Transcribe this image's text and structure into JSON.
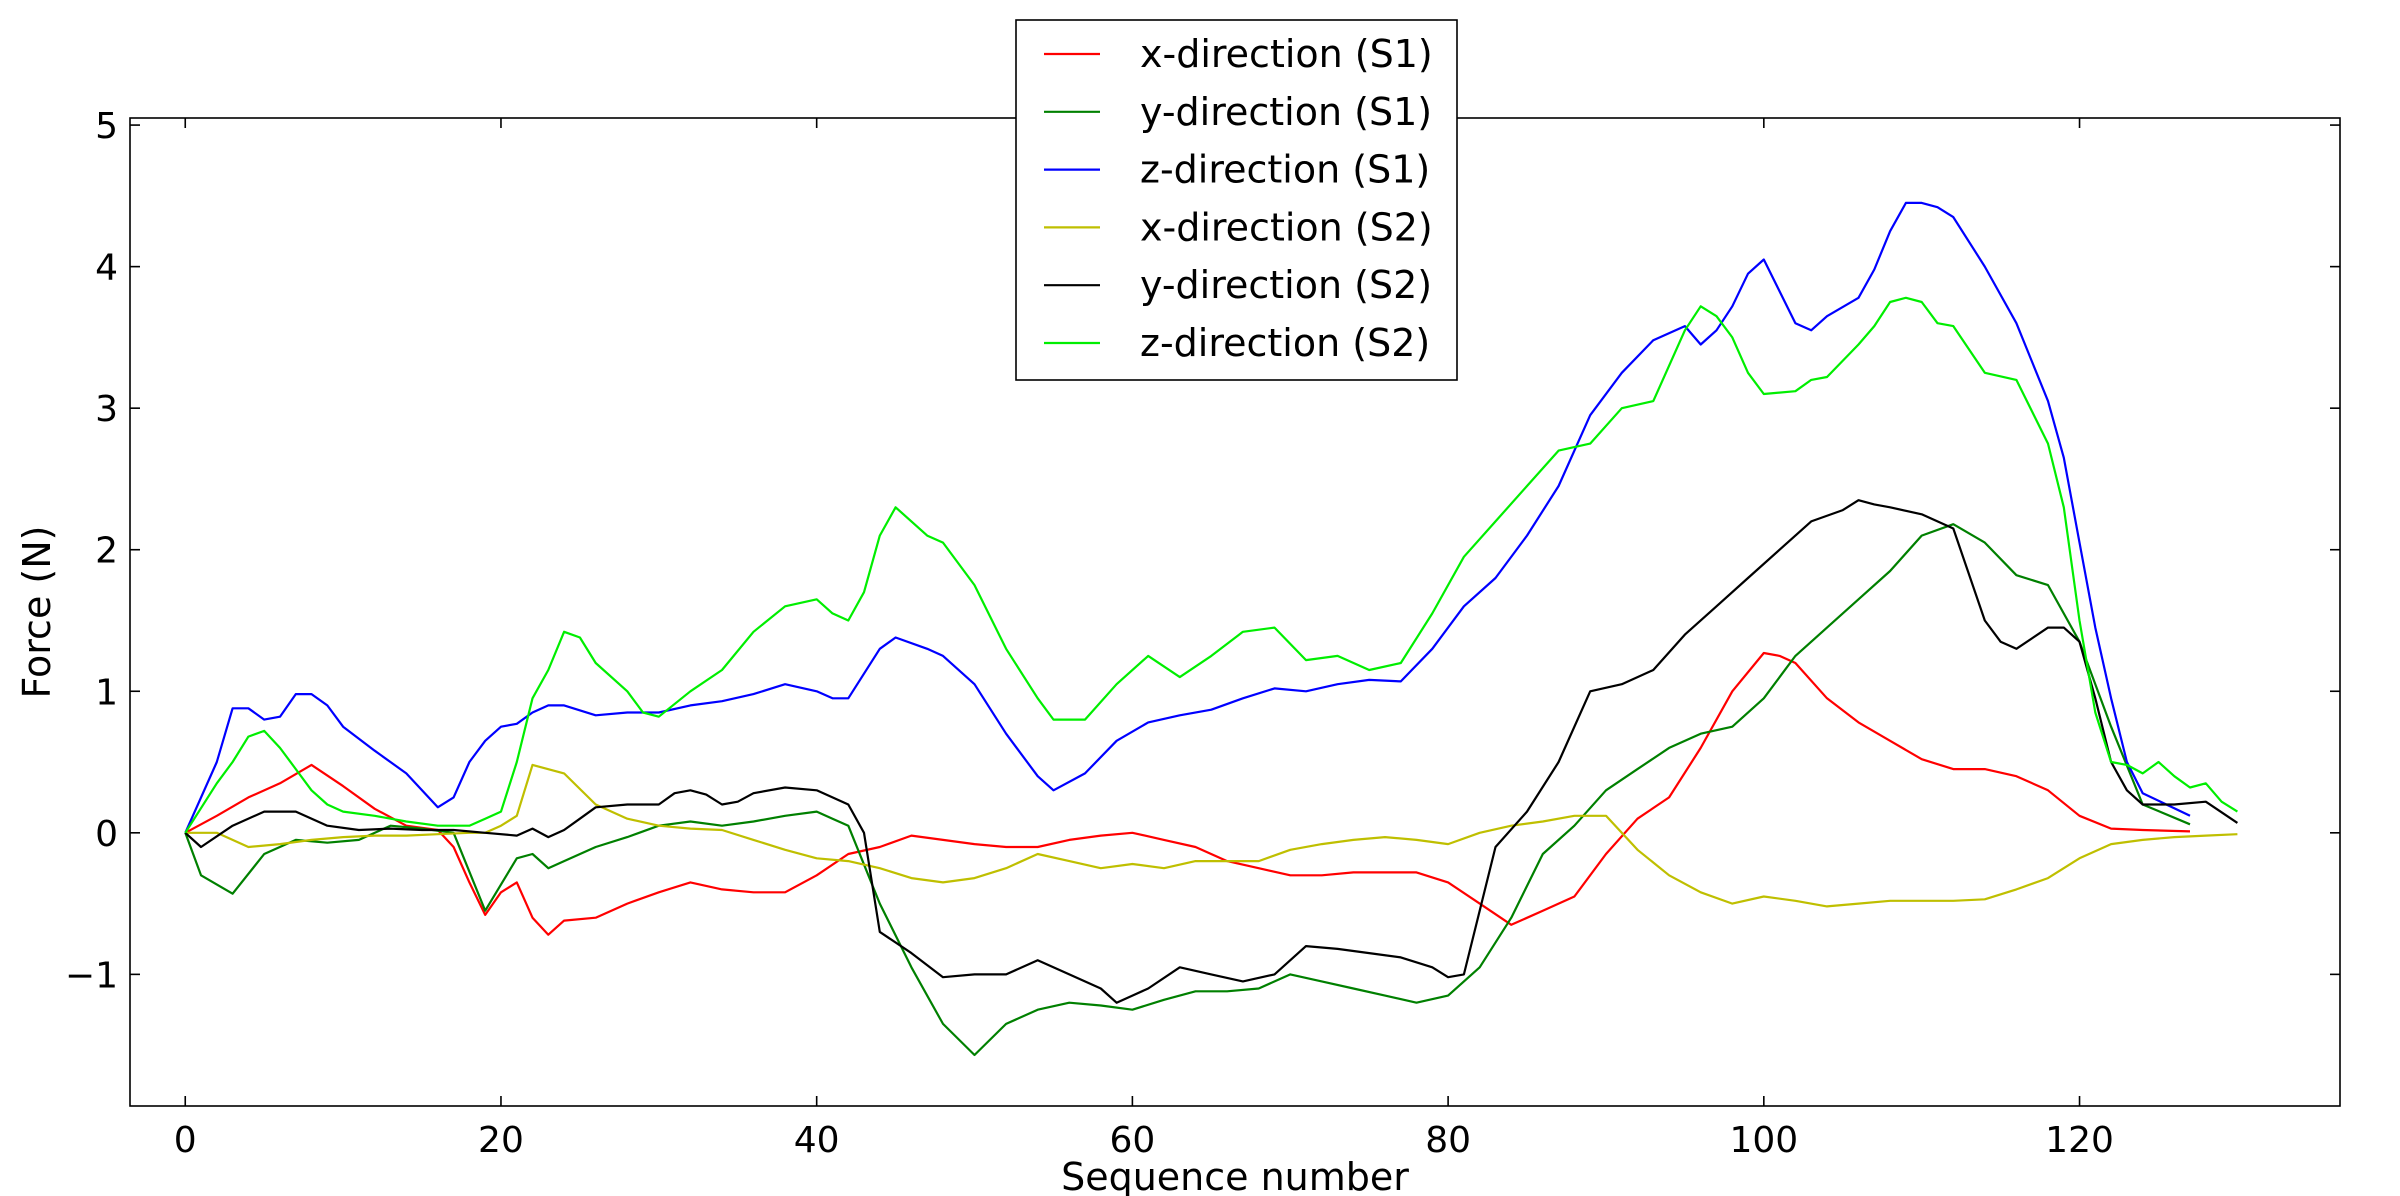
{
  "chart_data": {
    "type": "line",
    "title": "",
    "xlabel": "Sequence number",
    "ylabel": "Force (N)",
    "xlim": [
      -3.5,
      136.5
    ],
    "ylim": [
      -1.93,
      5.05
    ],
    "xticks": [
      0,
      20,
      40,
      60,
      80,
      100,
      120
    ],
    "yticks": [
      -1,
      0,
      1,
      2,
      3,
      4,
      5
    ],
    "ytick_labels": [
      "−1",
      "0",
      "1",
      "2",
      "3",
      "4",
      "5"
    ],
    "grid": false,
    "legend_position": "top-center",
    "series": [
      {
        "name": "x-direction (S1)",
        "color": "#ff0000",
        "x": [
          0,
          2,
          4,
          6,
          8,
          10,
          12,
          14,
          16,
          17,
          18,
          19,
          20,
          21,
          22,
          23,
          24,
          26,
          28,
          30,
          32,
          34,
          36,
          38,
          40,
          42,
          44,
          46,
          48,
          50,
          52,
          54,
          56,
          58,
          60,
          62,
          64,
          66,
          68,
          70,
          72,
          74,
          76,
          78,
          80,
          82,
          84,
          86,
          88,
          90,
          92,
          94,
          96,
          98,
          100,
          101,
          102,
          104,
          106,
          108,
          110,
          112,
          114,
          116,
          118,
          120,
          122,
          124,
          127
        ],
        "y": [
          0,
          0.12,
          0.25,
          0.35,
          0.48,
          0.33,
          0.17,
          0.05,
          0.02,
          -0.1,
          -0.35,
          -0.58,
          -0.42,
          -0.35,
          -0.6,
          -0.72,
          -0.62,
          -0.6,
          -0.5,
          -0.42,
          -0.35,
          -0.4,
          -0.42,
          -0.42,
          -0.3,
          -0.15,
          -0.1,
          -0.02,
          -0.05,
          -0.08,
          -0.1,
          -0.1,
          -0.05,
          -0.02,
          0,
          -0.05,
          -0.1,
          -0.2,
          -0.25,
          -0.3,
          -0.3,
          -0.28,
          -0.28,
          -0.28,
          -0.35,
          -0.5,
          -0.65,
          -0.55,
          -0.45,
          -0.15,
          0.1,
          0.25,
          0.6,
          1.0,
          1.27,
          1.25,
          1.2,
          0.95,
          0.78,
          0.65,
          0.52,
          0.45,
          0.45,
          0.4,
          0.3,
          0.12,
          0.03,
          0.02,
          0.01
        ]
      },
      {
        "name": "y-direction (S1)",
        "color": "#008000",
        "x": [
          0,
          1,
          3,
          5,
          7,
          9,
          11,
          13,
          15,
          17,
          19,
          21,
          22,
          23,
          24,
          26,
          28,
          30,
          32,
          34,
          36,
          38,
          40,
          41,
          42,
          44,
          46,
          48,
          50,
          52,
          54,
          56,
          58,
          60,
          62,
          64,
          66,
          68,
          70,
          72,
          74,
          76,
          78,
          80,
          82,
          84,
          86,
          88,
          90,
          92,
          94,
          96,
          98,
          100,
          102,
          104,
          106,
          108,
          110,
          112,
          114,
          116,
          118,
          120,
          122,
          124,
          127
        ],
        "y": [
          0,
          -0.3,
          -0.43,
          -0.15,
          -0.05,
          -0.07,
          -0.05,
          0.05,
          0.03,
          0,
          -0.55,
          -0.18,
          -0.15,
          -0.25,
          -0.2,
          -0.1,
          -0.03,
          0.05,
          0.08,
          0.05,
          0.08,
          0.12,
          0.15,
          0.1,
          0.05,
          -0.5,
          -0.95,
          -1.35,
          -1.57,
          -1.35,
          -1.25,
          -1.2,
          -1.22,
          -1.25,
          -1.18,
          -1.12,
          -1.12,
          -1.1,
          -1.0,
          -1.05,
          -1.1,
          -1.15,
          -1.2,
          -1.15,
          -0.95,
          -0.6,
          -0.15,
          0.05,
          0.3,
          0.45,
          0.6,
          0.7,
          0.75,
          0.95,
          1.25,
          1.45,
          1.65,
          1.85,
          2.1,
          2.18,
          2.05,
          1.82,
          1.75,
          1.35,
          0.75,
          0.2,
          0.06
        ]
      },
      {
        "name": "z-direction (S1)",
        "color": "#0000ff",
        "x": [
          0,
          2,
          3,
          4,
          5,
          6,
          7,
          8,
          9,
          10,
          12,
          14,
          16,
          17,
          18,
          19,
          20,
          21,
          22,
          23,
          24,
          26,
          28,
          30,
          32,
          34,
          36,
          38,
          40,
          41,
          42,
          44,
          45,
          47,
          48,
          50,
          52,
          54,
          55,
          57,
          59,
          61,
          63,
          65,
          67,
          69,
          71,
          73,
          75,
          77,
          79,
          81,
          83,
          85,
          87,
          89,
          91,
          93,
          95,
          96,
          97,
          98,
          99,
          100,
          102,
          103,
          104,
          106,
          107,
          108,
          109,
          110,
          111,
          112,
          114,
          116,
          118,
          119,
          120,
          121,
          122,
          123,
          124,
          127
        ],
        "y": [
          0,
          0.5,
          0.88,
          0.88,
          0.8,
          0.82,
          0.98,
          0.98,
          0.9,
          0.75,
          0.58,
          0.42,
          0.18,
          0.25,
          0.5,
          0.65,
          0.75,
          0.77,
          0.85,
          0.9,
          0.9,
          0.83,
          0.85,
          0.85,
          0.9,
          0.93,
          0.98,
          1.05,
          1.0,
          0.95,
          0.95,
          1.3,
          1.38,
          1.3,
          1.25,
          1.05,
          0.7,
          0.4,
          0.3,
          0.42,
          0.65,
          0.78,
          0.83,
          0.87,
          0.95,
          1.02,
          1.0,
          1.05,
          1.08,
          1.07,
          1.3,
          1.6,
          1.8,
          2.1,
          2.45,
          2.95,
          3.25,
          3.48,
          3.58,
          3.45,
          3.55,
          3.72,
          3.95,
          4.05,
          3.6,
          3.55,
          3.65,
          3.78,
          3.98,
          4.25,
          4.45,
          4.45,
          4.42,
          4.35,
          4.0,
          3.6,
          3.05,
          2.65,
          2.05,
          1.45,
          0.95,
          0.5,
          0.28,
          0.12
        ]
      },
      {
        "name": "x-direction (S2)",
        "color": "#bfbf00",
        "x": [
          0,
          2,
          4,
          6,
          8,
          10,
          12,
          14,
          16,
          18,
          19,
          20,
          21,
          22,
          24,
          26,
          28,
          30,
          32,
          34,
          36,
          38,
          40,
          42,
          44,
          46,
          48,
          50,
          52,
          54,
          56,
          58,
          60,
          62,
          64,
          66,
          68,
          70,
          72,
          74,
          76,
          78,
          80,
          82,
          84,
          86,
          88,
          90,
          92,
          94,
          96,
          98,
          100,
          102,
          104,
          106,
          108,
          110,
          112,
          114,
          116,
          118,
          120,
          122,
          124,
          126,
          128,
          130
        ],
        "y": [
          0,
          0,
          -0.1,
          -0.08,
          -0.05,
          -0.03,
          -0.02,
          -0.02,
          -0.01,
          0,
          0,
          0.05,
          0.12,
          0.48,
          0.42,
          0.2,
          0.1,
          0.05,
          0.03,
          0.02,
          -0.05,
          -0.12,
          -0.18,
          -0.2,
          -0.25,
          -0.32,
          -0.35,
          -0.32,
          -0.25,
          -0.15,
          -0.2,
          -0.25,
          -0.22,
          -0.25,
          -0.2,
          -0.2,
          -0.2,
          -0.12,
          -0.08,
          -0.05,
          -0.03,
          -0.05,
          -0.08,
          0,
          0.05,
          0.08,
          0.12,
          0.12,
          -0.12,
          -0.3,
          -0.42,
          -0.5,
          -0.45,
          -0.48,
          -0.52,
          -0.5,
          -0.48,
          -0.48,
          -0.48,
          -0.47,
          -0.4,
          -0.32,
          -0.18,
          -0.08,
          -0.05,
          -0.03,
          -0.02,
          -0.01
        ]
      },
      {
        "name": "y-direction (S2)",
        "color": "#000000",
        "x": [
          0,
          1,
          3,
          5,
          7,
          9,
          11,
          13,
          15,
          17,
          19,
          21,
          22,
          23,
          24,
          25,
          26,
          28,
          30,
          31,
          32,
          33,
          34,
          35,
          36,
          38,
          40,
          41,
          42,
          43,
          44,
          46,
          48,
          50,
          52,
          54,
          56,
          58,
          59,
          60,
          61,
          63,
          65,
          67,
          69,
          71,
          73,
          75,
          77,
          79,
          80,
          81,
          83,
          85,
          87,
          89,
          91,
          93,
          95,
          97,
          99,
          101,
          103,
          105,
          106,
          107,
          108,
          110,
          112,
          114,
          115,
          116,
          118,
          119,
          120,
          121,
          122,
          123,
          124,
          126,
          128,
          130
        ],
        "y": [
          0,
          -0.1,
          0.05,
          0.15,
          0.15,
          0.05,
          0.02,
          0.03,
          0.02,
          0.02,
          0.0,
          -0.02,
          0.03,
          -0.03,
          0.02,
          0.1,
          0.18,
          0.2,
          0.2,
          0.28,
          0.3,
          0.27,
          0.2,
          0.22,
          0.28,
          0.32,
          0.3,
          0.25,
          0.2,
          0.0,
          -0.7,
          -0.85,
          -1.02,
          -1.0,
          -1.0,
          -0.9,
          -1.0,
          -1.1,
          -1.2,
          -1.15,
          -1.1,
          -0.95,
          -1.0,
          -1.05,
          -1.0,
          -0.8,
          -0.82,
          -0.85,
          -0.88,
          -0.95,
          -1.02,
          -1.0,
          -0.1,
          0.15,
          0.5,
          1.0,
          1.05,
          1.15,
          1.4,
          1.6,
          1.8,
          2.0,
          2.2,
          2.28,
          2.35,
          2.32,
          2.3,
          2.25,
          2.15,
          1.5,
          1.35,
          1.3,
          1.45,
          1.45,
          1.35,
          0.95,
          0.5,
          0.3,
          0.2,
          0.2,
          0.22,
          0.07
        ]
      },
      {
        "name": "z-direction (S2)",
        "color": "#00ee00",
        "x": [
          0,
          2,
          3,
          4,
          5,
          6,
          7,
          8,
          9,
          10,
          12,
          14,
          16,
          17,
          18,
          19,
          20,
          21,
          22,
          23,
          24,
          25,
          26,
          28,
          29,
          30,
          32,
          34,
          36,
          38,
          40,
          41,
          42,
          43,
          44,
          45,
          47,
          48,
          50,
          52,
          54,
          55,
          57,
          59,
          61,
          63,
          65,
          67,
          69,
          71,
          73,
          75,
          77,
          79,
          81,
          83,
          85,
          87,
          89,
          91,
          93,
          95,
          96,
          97,
          98,
          99,
          100,
          102,
          103,
          104,
          106,
          107,
          108,
          109,
          110,
          111,
          112,
          114,
          116,
          118,
          119,
          120,
          121,
          122,
          123,
          124,
          125,
          126,
          127,
          128,
          129,
          130
        ],
        "y": [
          0,
          0.35,
          0.5,
          0.68,
          0.72,
          0.6,
          0.45,
          0.3,
          0.2,
          0.15,
          0.12,
          0.08,
          0.05,
          0.05,
          0.05,
          0.1,
          0.15,
          0.5,
          0.95,
          1.15,
          1.42,
          1.38,
          1.2,
          1.0,
          0.85,
          0.82,
          1.0,
          1.15,
          1.42,
          1.6,
          1.65,
          1.55,
          1.5,
          1.7,
          2.1,
          2.3,
          2.1,
          2.05,
          1.75,
          1.3,
          0.95,
          0.8,
          0.8,
          1.05,
          1.25,
          1.1,
          1.25,
          1.42,
          1.45,
          1.22,
          1.25,
          1.15,
          1.2,
          1.55,
          1.95,
          2.2,
          2.45,
          2.7,
          2.75,
          3.0,
          3.05,
          3.55,
          3.72,
          3.65,
          3.5,
          3.25,
          3.1,
          3.12,
          3.2,
          3.22,
          3.45,
          3.58,
          3.75,
          3.78,
          3.75,
          3.6,
          3.58,
          3.25,
          3.2,
          2.75,
          2.3,
          1.5,
          0.85,
          0.5,
          0.48,
          0.42,
          0.5,
          0.4,
          0.32,
          0.35,
          0.22,
          0.15
        ]
      }
    ]
  }
}
